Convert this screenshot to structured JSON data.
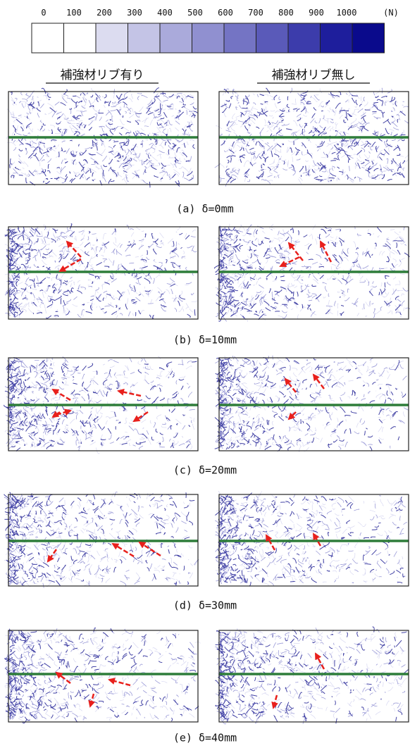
{
  "legend": {
    "labels": [
      "0",
      "100",
      "200",
      "300",
      "400",
      "500",
      "600",
      "700",
      "800",
      "900",
      "1000"
    ],
    "unit": "(N)",
    "colors": [
      "#ffffff",
      "#ffffff",
      "#dcdcf0",
      "#c4c4e6",
      "#aaaadb",
      "#9090d0",
      "#7474c4",
      "#5a5ab9",
      "#3c3cab",
      "#1e1e9c",
      "#0a0a8c"
    ]
  },
  "headers": [
    "補強材リブ有り",
    "補強材リブ無し"
  ],
  "captions": [
    "(a)  δ=0mm",
    "(b)  δ=10mm",
    "(c)  δ=20mm",
    "(d)  δ=30mm",
    "(e)  δ=40mm"
  ]
}
